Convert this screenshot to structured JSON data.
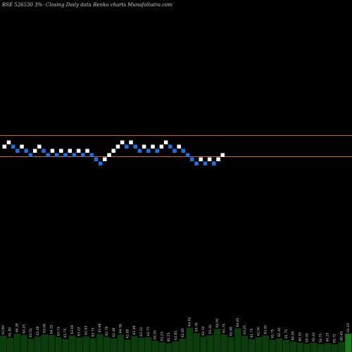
{
  "chart_data": {
    "type": "renko",
    "title": "BSE 526530  3%-  Closing Daily data  Renko  charts MunafaSutra.com",
    "colors": {
      "background": "#000000",
      "up_brick": "#ffffff",
      "down_brick": "#1e6fe0",
      "reference_line": "#c8641e",
      "volume_bar": "#0c3d0c",
      "volume_bar_last": "#1a7a1a",
      "labels": "#d8d8d8"
    },
    "reference_lines": [
      "upper",
      "lower"
    ],
    "bricks": [
      {
        "dir": "up",
        "level": 1
      },
      {
        "dir": "up",
        "level": 2
      },
      {
        "dir": "down",
        "level": 1
      },
      {
        "dir": "down",
        "level": 0
      },
      {
        "dir": "up",
        "level": 1
      },
      {
        "dir": "down",
        "level": 0
      },
      {
        "dir": "down",
        "level": -1
      },
      {
        "dir": "up",
        "level": 0
      },
      {
        "dir": "up",
        "level": 1
      },
      {
        "dir": "down",
        "level": 0
      },
      {
        "dir": "down",
        "level": -1
      },
      {
        "dir": "up",
        "level": 0
      },
      {
        "dir": "down",
        "level": -1
      },
      {
        "dir": "up",
        "level": 0
      },
      {
        "dir": "down",
        "level": -1
      },
      {
        "dir": "up",
        "level": 0
      },
      {
        "dir": "down",
        "level": -1
      },
      {
        "dir": "up",
        "level": 0
      },
      {
        "dir": "down",
        "level": -1
      },
      {
        "dir": "up",
        "level": 0
      },
      {
        "dir": "down",
        "level": -1
      },
      {
        "dir": "down",
        "level": -2
      },
      {
        "dir": "down",
        "level": -3
      },
      {
        "dir": "up",
        "level": -2
      },
      {
        "dir": "up",
        "level": -1
      },
      {
        "dir": "up",
        "level": 0
      },
      {
        "dir": "up",
        "level": 1
      },
      {
        "dir": "up",
        "level": 2
      },
      {
        "dir": "down",
        "level": 1
      },
      {
        "dir": "up",
        "level": 2
      },
      {
        "dir": "down",
        "level": 1
      },
      {
        "dir": "down",
        "level": 0
      },
      {
        "dir": "up",
        "level": 1
      },
      {
        "dir": "down",
        "level": 0
      },
      {
        "dir": "up",
        "level": 1
      },
      {
        "dir": "down",
        "level": 0
      },
      {
        "dir": "up",
        "level": 1
      },
      {
        "dir": "up",
        "level": 2
      },
      {
        "dir": "down",
        "level": 1
      },
      {
        "dir": "down",
        "level": 0
      },
      {
        "dir": "up",
        "level": 1
      },
      {
        "dir": "down",
        "level": 0
      },
      {
        "dir": "down",
        "level": -1
      },
      {
        "dir": "down",
        "level": -2
      },
      {
        "dir": "down",
        "level": -3
      },
      {
        "dir": "up",
        "level": -2
      },
      {
        "dir": "down",
        "level": -3
      },
      {
        "dir": "up",
        "level": -2
      },
      {
        "dir": "down",
        "level": -3
      },
      {
        "dir": "up",
        "level": -2
      },
      {
        "dir": "up",
        "level": -1
      }
    ],
    "volume": [
      {
        "label": "63.69",
        "value": 0.55
      },
      {
        "label": "61.89",
        "value": 0.48
      },
      {
        "label": "64.38",
        "value": 0.62
      },
      {
        "label": "64.25",
        "value": 0.58
      },
      {
        "label": "63.51",
        "value": 0.45
      },
      {
        "label": "62.48",
        "value": 0.52
      },
      {
        "label": "63.06",
        "value": 0.6
      },
      {
        "label": "64.25",
        "value": 0.57
      },
      {
        "label": "63.71",
        "value": 0.5
      },
      {
        "label": "62.75",
        "value": 0.44
      },
      {
        "label": "63.06",
        "value": 0.56
      },
      {
        "label": "63.22",
        "value": 0.49
      },
      {
        "label": "62.63",
        "value": 0.53
      },
      {
        "label": "62.75",
        "value": 0.47
      },
      {
        "label": "63.98",
        "value": 0.61
      },
      {
        "label": "62.78",
        "value": 0.51
      },
      {
        "label": "62.48",
        "value": 0.46
      },
      {
        "label": "64.36",
        "value": 0.59
      },
      {
        "label": "61.89",
        "value": 0.42
      },
      {
        "label": "62.48",
        "value": 0.54
      },
      {
        "label": "63.23",
        "value": 0.48
      },
      {
        "label": "62.75",
        "value": 0.5
      },
      {
        "label": "61.55",
        "value": 0.38
      },
      {
        "label": "61.23",
        "value": 0.33
      },
      {
        "label": "60.25",
        "value": 0.3
      },
      {
        "label": "61.85",
        "value": 0.36
      },
      {
        "label": "62.85",
        "value": 0.45
      },
      {
        "label": "64.95",
        "value": 0.82
      },
      {
        "label": "63.76",
        "value": 0.64
      },
      {
        "label": "62.50",
        "value": 0.52
      },
      {
        "label": "63.30",
        "value": 0.57
      },
      {
        "label": "64.90",
        "value": 0.78
      },
      {
        "label": "63.75",
        "value": 0.6
      },
      {
        "label": "62.48",
        "value": 0.5
      },
      {
        "label": "64.95",
        "value": 0.8
      },
      {
        "label": "63.25",
        "value": 0.55
      },
      {
        "label": "61.75",
        "value": 0.44
      },
      {
        "label": "62.50",
        "value": 0.5
      },
      {
        "label": "63.30",
        "value": 0.56
      },
      {
        "label": "61.75",
        "value": 0.42
      },
      {
        "label": "62.40",
        "value": 0.47
      },
      {
        "label": "61.75",
        "value": 0.41
      },
      {
        "label": "60.95",
        "value": 0.35
      },
      {
        "label": "60.55",
        "value": 0.32
      },
      {
        "label": "59.95",
        "value": 0.28
      },
      {
        "label": "60.45",
        "value": 0.31
      },
      {
        "label": "59.75",
        "value": 0.27
      },
      {
        "label": "60.25",
        "value": 0.3
      },
      {
        "label": "59.75",
        "value": 0.26
      },
      {
        "label": "60.45",
        "value": 0.34
      },
      {
        "label": "61.19",
        "value": 0.62
      }
    ]
  }
}
